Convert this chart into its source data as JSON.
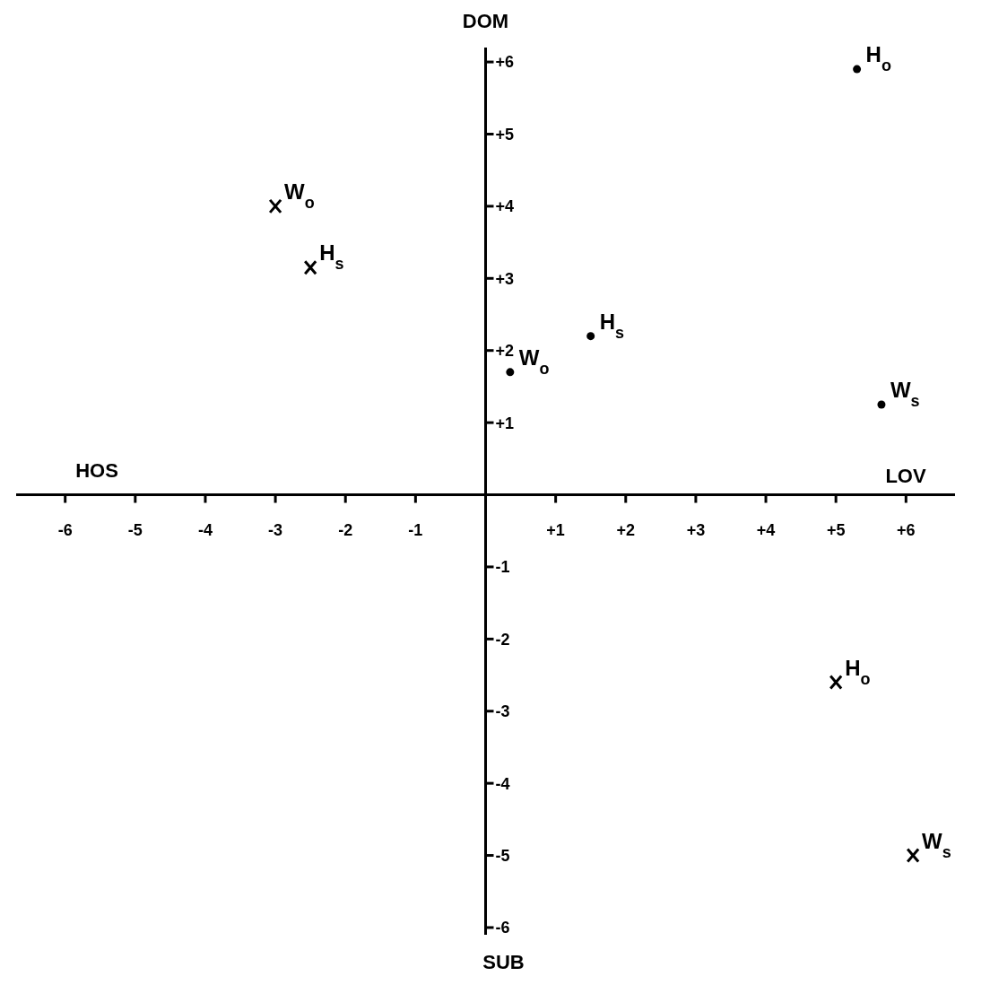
{
  "chart_data": {
    "type": "scatter",
    "series": [
      {
        "color": "#000000",
        "marker": "circle",
        "x": [
          5.3,
          1.5,
          0.35,
          5.65
        ],
        "values": [
          5.9,
          2.2,
          1.7,
          1.25
        ]
      },
      {
        "color": "#000000",
        "marker": "cross",
        "x": [
          -3,
          -2.5,
          5.0,
          6.1
        ],
        "values": [
          4.0,
          3.15,
          -2.6,
          -5.0
        ]
      }
    ],
    "xlim": [
      -6.7,
      6.7
    ],
    "ylim": [
      -6.1,
      6.2
    ],
    "xticks": [
      {
        "value": -6,
        "label": "-6"
      },
      {
        "value": -5,
        "label": "-5"
      },
      {
        "value": -4,
        "label": "-4"
      },
      {
        "value": -3,
        "label": "-3"
      },
      {
        "value": -2,
        "label": "-2"
      },
      {
        "value": -1,
        "label": "-1"
      },
      {
        "value": 0,
        "label": null
      },
      {
        "value": 1,
        "label": "+1"
      },
      {
        "value": 2,
        "label": "+2"
      },
      {
        "value": 3,
        "label": "+3"
      },
      {
        "value": 4,
        "label": "+4"
      },
      {
        "value": 5,
        "label": "+5"
      },
      {
        "value": 6,
        "label": "+6"
      }
    ],
    "yticks": [
      {
        "value": -6,
        "label": "-6"
      },
      {
        "value": -5,
        "label": "-5"
      },
      {
        "value": -4,
        "label": "-4"
      },
      {
        "value": -3,
        "label": "-3"
      },
      {
        "value": -2,
        "label": "-2"
      },
      {
        "value": -1,
        "label": "-1"
      },
      {
        "value": 0,
        "label": null
      },
      {
        "value": 1,
        "label": "+1"
      },
      {
        "value": 2,
        "label": "+2"
      },
      {
        "value": 3,
        "label": "+3"
      },
      {
        "value": 4,
        "label": "+4"
      },
      {
        "value": 5,
        "label": "+5"
      },
      {
        "value": 6,
        "label": "+6"
      }
    ],
    "grid": false,
    "legend": false,
    "annotations": [
      "DOM",
      "SUB",
      "HOS",
      "LOV",
      {
        "text": "H$_{o}$",
        "x": 5.3,
        "y": 5.9
      },
      {
        "text": "H$_{s}$",
        "x": 1.5,
        "y": 2.2
      },
      {
        "text": "W$_{o}$",
        "x": 0.35,
        "y": 1.7
      },
      {
        "text": "W$_{s}$",
        "x": 5.65,
        "y": 1.25
      },
      {
        "text": "W$_{o}$",
        "x": -3,
        "y": 4.0
      },
      {
        "text": "H$_{s}$",
        "x": -2.5,
        "y": 3.15
      },
      {
        "text": "H$_{o}$",
        "x": 5.0,
        "y": -2.6
      },
      {
        "text": "W$_{s}$",
        "x": 6.1,
        "y": -5.0
      }
    ]
  }
}
